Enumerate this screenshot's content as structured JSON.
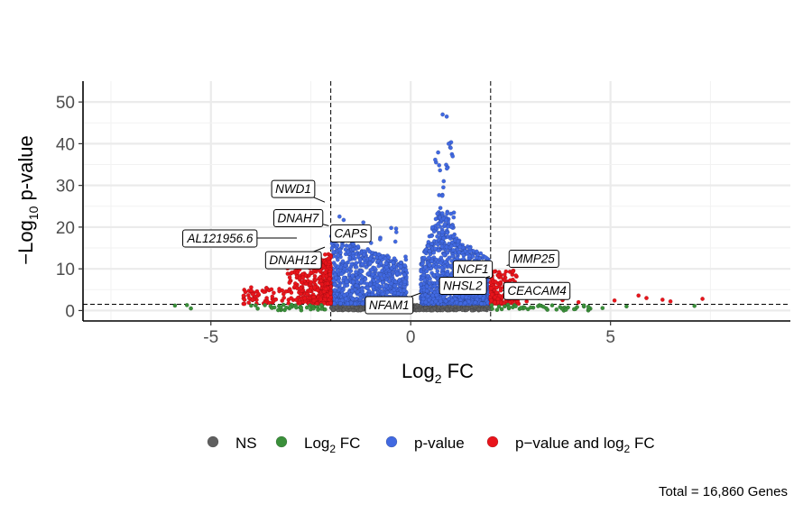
{
  "chart_data": {
    "type": "scatter",
    "subtype": "volcano",
    "title": "",
    "xlabel": {
      "main": "Log",
      "sub": "2",
      "rest": " FC"
    },
    "ylabel": {
      "prefix": "−Log",
      "sub": "10",
      "rest": " p-value"
    },
    "xlim": [
      -8.2,
      9.5
    ],
    "ylim": [
      -2.5,
      55
    ],
    "x_ticks": [
      -5,
      0,
      5
    ],
    "x_tick_labels": [
      "-5",
      "0",
      "5"
    ],
    "y_ticks": [
      0,
      10,
      20,
      30,
      40,
      50
    ],
    "y_tick_labels": [
      "0",
      "10",
      "20",
      "30",
      "40",
      "50"
    ],
    "grid": true,
    "thresholds": {
      "log2fc": 2,
      "p_value_neglog10": 1.5
    },
    "colors": {
      "NS": "#5f5f5f",
      "Log2 FC": "#3a8f3a",
      "p-value": "#4169e1",
      "p - value and log2 FC": "#e8141b"
    },
    "legend_position": "bottom",
    "legend": [
      {
        "key": "NS",
        "label": "NS",
        "label_sub": "",
        "label_tail": ""
      },
      {
        "key": "Log2 FC",
        "label": "Log",
        "label_sub": "2",
        "label_tail": " FC"
      },
      {
        "key": "p-value",
        "label": "p-value",
        "label_sub": "",
        "label_tail": ""
      },
      {
        "key": "p - value and log2 FC",
        "label": "p−value and log",
        "label_sub": "2",
        "label_tail": " FC"
      }
    ],
    "labeled_genes": [
      {
        "name": "NWD1",
        "x": -2.15,
        "y": 26.0
      },
      {
        "name": "DNAH7",
        "x": -2.05,
        "y": 20.3
      },
      {
        "name": "CAPS",
        "x": -1.95,
        "y": 18.6
      },
      {
        "name": "AL121956.6",
        "x": -2.85,
        "y": 17.4
      },
      {
        "name": "DNAH12",
        "x": -2.15,
        "y": 15.2
      },
      {
        "name": "NCF1",
        "x": 2.05,
        "y": 11.5
      },
      {
        "name": "MMP25",
        "x": 2.4,
        "y": 10.8
      },
      {
        "name": "NHSL2",
        "x": 1.98,
        "y": 8.2
      },
      {
        "name": "CEACAM4",
        "x": 2.3,
        "y": 4.8
      },
      {
        "name": "NFAM1",
        "x": 0.25,
        "y": 4.2
      }
    ],
    "caption": "Total = 16,860 Genes"
  }
}
